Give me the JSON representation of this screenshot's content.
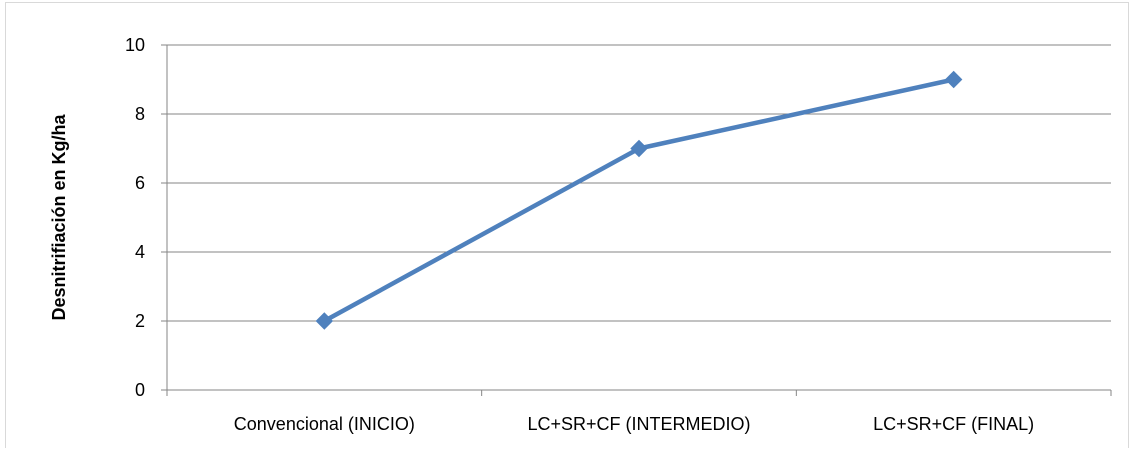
{
  "chart_data": {
    "type": "line",
    "title": "",
    "xlabel": "",
    "ylabel": "Desnitrifiación en Kg/ha",
    "categories": [
      "Convencional (INICIO)",
      "LC+SR+CF (INTERMEDIO)",
      "LC+SR+CF (FINAL)"
    ],
    "series": [
      {
        "values": [
          2,
          7,
          9
        ],
        "color": "#4f81bd",
        "marker": "diamond"
      }
    ],
    "ylim": [
      0,
      10
    ],
    "yticks": [
      0,
      2,
      4,
      6,
      8,
      10
    ],
    "grid": true,
    "legend": "none"
  }
}
